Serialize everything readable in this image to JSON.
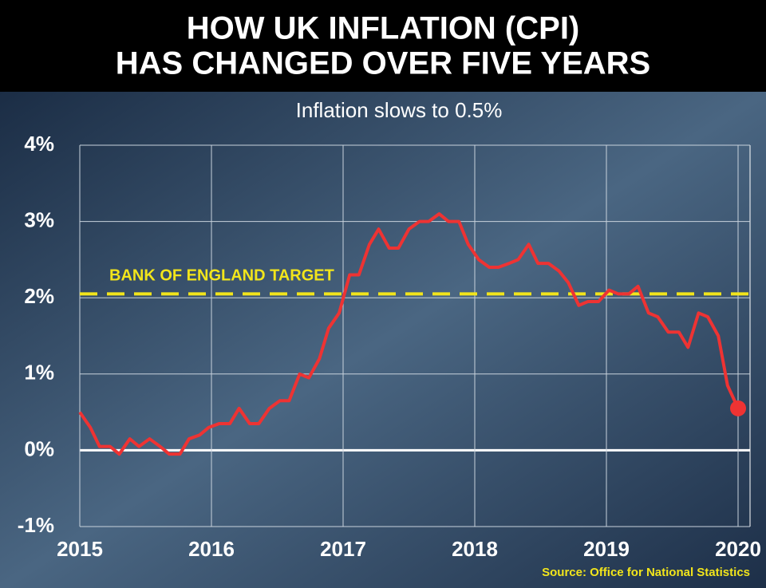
{
  "chart_data": {
    "type": "line",
    "title": [
      "HOW UK INFLATION (CPI)",
      "HAS CHANGED OVER FIVE YEARS"
    ],
    "subtitle": "Inflation slows to 0.5%",
    "source": "Source: Office for National Statistics",
    "target": {
      "value": 2.05,
      "label": "BANK OF ENGLAND TARGET",
      "color": "#f2e51b"
    },
    "xlim": [
      2015,
      2020
    ],
    "xticks": [
      2015,
      2016,
      2017,
      2018,
      2019,
      2020
    ],
    "ylim": [
      -1,
      4
    ],
    "yticks": [
      {
        "value": -1,
        "label": "-1%"
      },
      {
        "value": 0,
        "label": "0%"
      },
      {
        "value": 1,
        "label": "1%"
      },
      {
        "value": 2,
        "label": "2%"
      },
      {
        "value": 3,
        "label": "3%"
      },
      {
        "value": 4,
        "label": "4%"
      }
    ],
    "grid": true,
    "series": [
      {
        "color": "#ee3333",
        "x": [
          2015.0,
          2015.08,
          2015.15,
          2015.23,
          2015.3,
          2015.38,
          2015.45,
          2015.53,
          2015.61,
          2015.68,
          2015.76,
          2015.83,
          2015.91,
          2015.98,
          2016.06,
          2016.14,
          2016.21,
          2016.29,
          2016.36,
          2016.44,
          2016.52,
          2016.59,
          2016.67,
          2016.74,
          2016.82,
          2016.89,
          2016.97,
          2017.05,
          2017.12,
          2017.2,
          2017.27,
          2017.35,
          2017.42,
          2017.5,
          2017.58,
          2017.65,
          2017.73,
          2017.8,
          2017.88,
          2017.95,
          2018.03,
          2018.11,
          2018.18,
          2018.26,
          2018.33,
          2018.41,
          2018.48,
          2018.56,
          2018.64,
          2018.71,
          2018.79,
          2018.86,
          2018.94,
          2019.02,
          2019.09,
          2019.17,
          2019.24,
          2019.32,
          2019.39,
          2019.47,
          2019.55,
          2019.62,
          2019.7,
          2019.77,
          2019.85,
          2019.92,
          2020.0
        ],
        "values": [
          0.5,
          0.3,
          0.05,
          0.05,
          -0.05,
          0.15,
          0.05,
          0.15,
          0.05,
          -0.05,
          -0.05,
          0.15,
          0.2,
          0.3,
          0.35,
          0.35,
          0.55,
          0.35,
          0.35,
          0.55,
          0.65,
          0.65,
          1.0,
          0.95,
          1.2,
          1.6,
          1.8,
          2.3,
          2.3,
          2.7,
          2.9,
          2.65,
          2.65,
          2.9,
          3.0,
          3.0,
          3.1,
          3.0,
          3.0,
          2.7,
          2.5,
          2.4,
          2.4,
          2.45,
          2.5,
          2.7,
          2.45,
          2.45,
          2.35,
          2.2,
          1.9,
          1.95,
          1.95,
          2.1,
          2.05,
          2.05,
          2.15,
          1.8,
          1.75,
          1.55,
          1.55,
          1.35,
          1.8,
          1.75,
          1.5,
          0.85,
          0.55
        ]
      }
    ]
  }
}
